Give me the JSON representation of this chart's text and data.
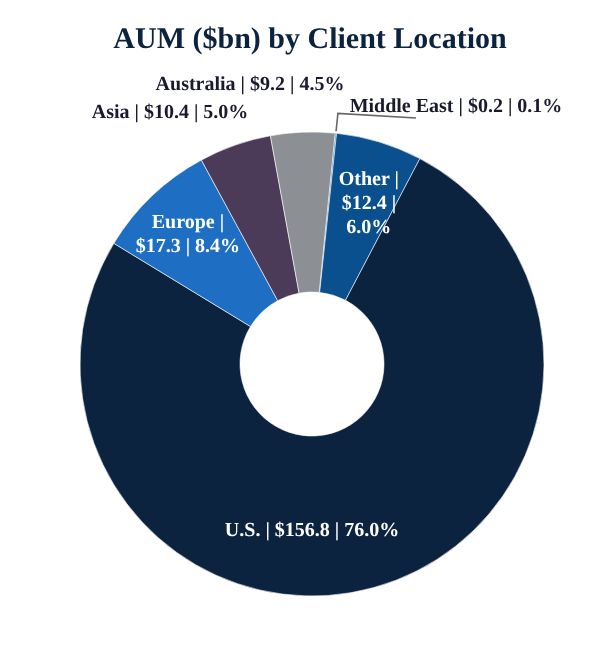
{
  "chart_data": {
    "type": "donut",
    "title": "AUM ($bn) by Client Location",
    "categories": [
      "Middle East | $0.2 | 0.1%",
      "Other | $12.4 | 6.0%",
      "U.S. | $156.8 | 76.0%",
      "Europe | $17.3 | 8.4%",
      "Asia | $10.4 | 5.0%",
      "Australia | $9.2 | 4.5%"
    ],
    "values": [
      0.2,
      12.4,
      156.8,
      17.3,
      10.4,
      9.2
    ],
    "colors": [
      "#5b9bd5",
      "#0a4f8e",
      "#0c2340",
      "#1e6fc4",
      "#4b3b58",
      "#8c8f94"
    ],
    "legend": false
  }
}
